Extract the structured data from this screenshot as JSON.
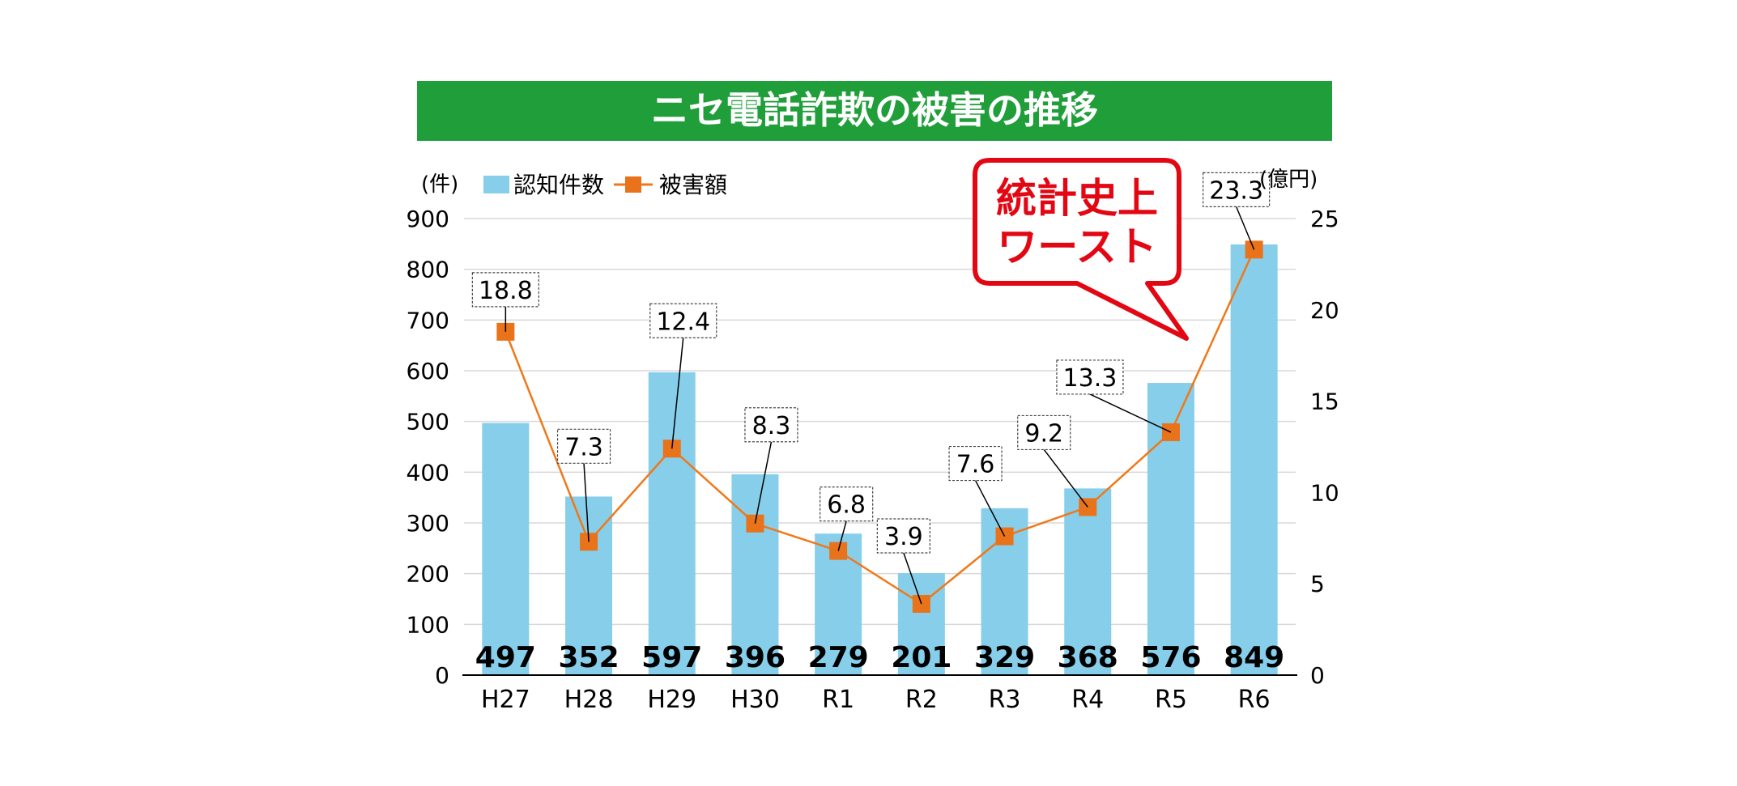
{
  "chart_data": {
    "type": "bar+line",
    "title": "ニセ電話詐欺の被害の推移",
    "colors": {
      "title_band": "#1f9e3a",
      "bar": "#87ceeb",
      "line": "#f07818",
      "marker": "#e8731a",
      "callout_border": "#e30613",
      "callout_text": "#e30613",
      "gridline": "#d9d9d9"
    },
    "categories": [
      "H27",
      "H28",
      "H29",
      "H30",
      "R1",
      "R2",
      "R3",
      "R4",
      "R5",
      "R6"
    ],
    "series": [
      {
        "name": "認知件数",
        "type": "bar",
        "axis": "left",
        "values": [
          497,
          352,
          597,
          396,
          279,
          201,
          329,
          368,
          576,
          849
        ],
        "labels": [
          "497",
          "352",
          "597",
          "396",
          "279",
          "201",
          "329",
          "368",
          "576",
          "849"
        ]
      },
      {
        "name": "被害額",
        "type": "line",
        "axis": "right",
        "values": [
          18.8,
          7.3,
          12.4,
          8.3,
          6.8,
          3.9,
          7.6,
          9.2,
          13.3,
          23.3
        ],
        "labels": [
          "18.8",
          "7.3",
          "12.4",
          "8.3",
          "6.8",
          "3.9",
          "7.6",
          "9.2",
          "13.3",
          "23.3"
        ]
      }
    ],
    "y_left": {
      "unit": "(件)",
      "ylim": [
        0,
        900
      ],
      "ticks": [
        "0",
        "100",
        "200",
        "300",
        "400",
        "500",
        "600",
        "700",
        "800",
        "900"
      ]
    },
    "y_right": {
      "unit": "(億円)",
      "ylim": [
        0,
        25
      ],
      "ticks": [
        "0",
        "5",
        "10",
        "15",
        "20",
        "25"
      ]
    },
    "grid": true,
    "legend": "top-left",
    "annotation": {
      "lines": [
        "統計史上",
        "ワースト"
      ]
    }
  }
}
